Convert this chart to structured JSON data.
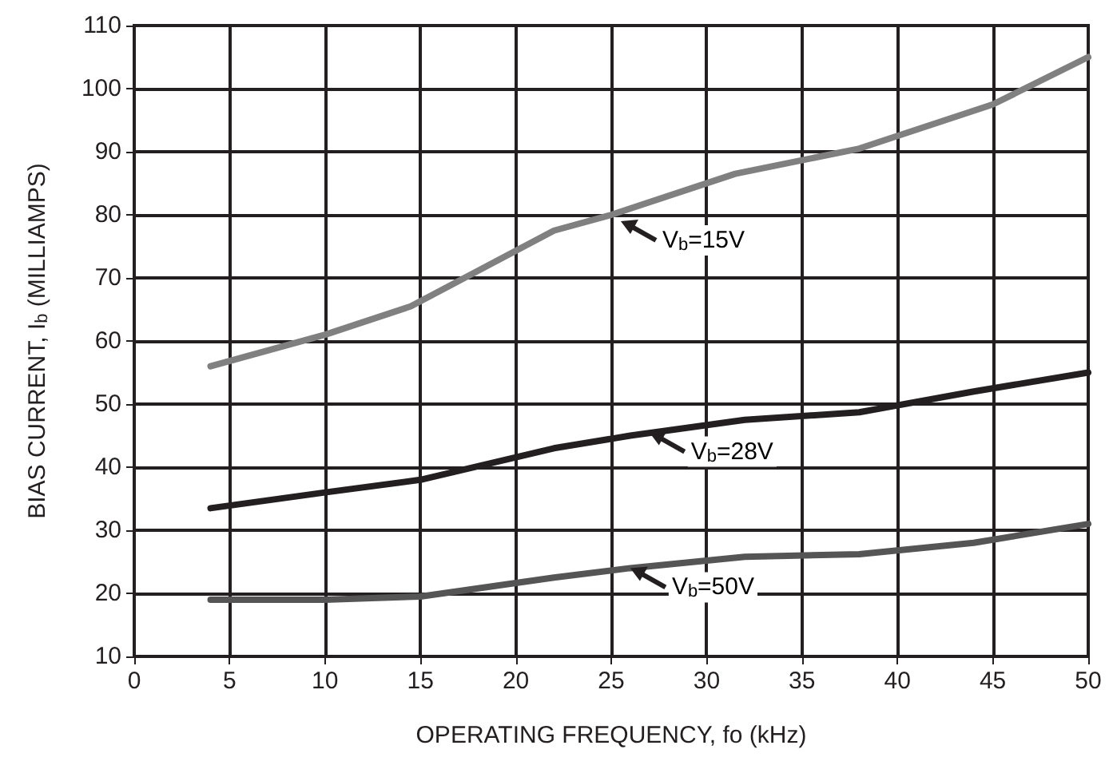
{
  "chart_data": {
    "type": "line",
    "xlabel": "OPERATING FREQUENCY, fo (kHz)",
    "ylabel": "BIAS CURRENT, I$_{b}$ (MILLIAMPS)",
    "xlim": [
      0,
      50
    ],
    "xticks": [
      0,
      5,
      10,
      15,
      20,
      25,
      30,
      35,
      40,
      45,
      50
    ],
    "ylim": [
      10,
      110
    ],
    "yticks": [
      10,
      20,
      30,
      40,
      50,
      60,
      70,
      80,
      90,
      100,
      110
    ],
    "grid": true,
    "marker": "none",
    "line_style": "solid",
    "series": [
      {
        "color": "#808080",
        "x": [
          4,
          10,
          14.5,
          22,
          25,
          31.5,
          38,
          45,
          50
        ],
        "values": [
          56,
          61,
          65.5,
          77.5,
          80,
          86.5,
          90.5,
          97.5,
          105
        ]
      },
      {
        "color": "#231f20",
        "x": [
          4,
          10,
          15,
          22,
          26,
          32,
          38,
          44,
          50
        ],
        "values": [
          33.5,
          36,
          38,
          43,
          45,
          47.5,
          48.7,
          52,
          55
        ]
      },
      {
        "color": "#555555",
        "x": [
          4,
          10,
          15,
          22,
          26,
          32,
          38,
          44,
          50
        ],
        "values": [
          19,
          19,
          19.5,
          22.5,
          24,
          25.8,
          26.2,
          28,
          31
        ]
      }
    ],
    "annotations": [
      {
        "text": "V$_{b}$=15V",
        "x": 25.5,
        "y": 79
      },
      {
        "text": "V$_{b}$=28V",
        "x": 27,
        "y": 45.5
      },
      {
        "text": "V$_{b}$=50V",
        "x": 26,
        "y": 24
      }
    ]
  }
}
